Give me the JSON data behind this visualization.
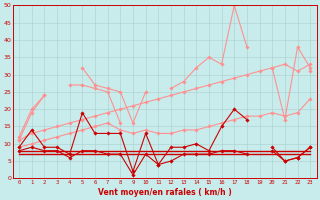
{
  "x": [
    0,
    1,
    2,
    3,
    4,
    5,
    6,
    7,
    8,
    9,
    10,
    11,
    12,
    13,
    14,
    15,
    16,
    17,
    18,
    19,
    20,
    21,
    22,
    23
  ],
  "series": [
    {
      "name": "rafales_peak",
      "color": "#ff9090",
      "linewidth": 0.8,
      "values": [
        12,
        20,
        24,
        null,
        null,
        32,
        27,
        26,
        25,
        16,
        25,
        null,
        26,
        28,
        32,
        35,
        33,
        50,
        38,
        null,
        32,
        17,
        38,
        32
      ],
      "marker": "D",
      "markersize": 1.8
    },
    {
      "name": "rafales_mid",
      "color": "#ff9090",
      "linewidth": 0.8,
      "values": [
        11,
        19,
        24,
        null,
        27,
        27,
        26,
        25,
        16,
        null,
        null,
        null,
        null,
        null,
        null,
        null,
        null,
        null,
        null,
        null,
        null,
        null,
        null,
        31
      ],
      "marker": "D",
      "markersize": 1.8
    },
    {
      "name": "trend_upper",
      "color": "#ff9090",
      "linewidth": 0.8,
      "values": [
        11,
        13,
        14,
        15,
        16,
        17,
        18,
        19,
        20,
        21,
        22,
        23,
        24,
        25,
        26,
        27,
        28,
        29,
        30,
        31,
        32,
        33,
        31,
        33
      ],
      "marker": "D",
      "markersize": 1.8
    },
    {
      "name": "trend_lower",
      "color": "#ff9090",
      "linewidth": 0.8,
      "values": [
        9,
        10,
        11,
        12,
        13,
        14,
        15,
        16,
        14,
        13,
        14,
        13,
        13,
        14,
        14,
        15,
        16,
        17,
        18,
        18,
        19,
        18,
        19,
        23
      ],
      "marker": "D",
      "markersize": 1.8
    },
    {
      "name": "moyen_high",
      "color": "#cc0000",
      "linewidth": 0.8,
      "values": [
        9,
        14,
        9,
        9,
        7,
        19,
        13,
        13,
        13,
        2,
        13,
        4,
        9,
        9,
        10,
        8,
        15,
        20,
        17,
        null,
        9,
        5,
        6,
        9
      ],
      "marker": "D",
      "markersize": 1.8
    },
    {
      "name": "moyen_mid",
      "color": "#cc0000",
      "linewidth": 0.8,
      "values": [
        8,
        9,
        8,
        8,
        6,
        8,
        8,
        7,
        7,
        1,
        7,
        4,
        5,
        7,
        7,
        7,
        8,
        8,
        7,
        null,
        8,
        5,
        6,
        9
      ],
      "marker": "D",
      "markersize": 1.8
    },
    {
      "name": "flat_7",
      "color": "#cc0000",
      "linewidth": 1.0,
      "values": [
        7,
        7,
        7,
        7,
        7,
        7,
        7,
        7,
        7,
        7,
        7,
        7,
        7,
        7,
        7,
        7,
        7,
        7,
        7,
        7,
        7,
        7,
        7,
        7
      ],
      "marker": null,
      "markersize": 0
    },
    {
      "name": "flat_8",
      "color": "#cc0000",
      "linewidth": 1.0,
      "values": [
        8,
        8,
        8,
        8,
        8,
        8,
        8,
        8,
        8,
        8,
        8,
        8,
        8,
        8,
        8,
        8,
        8,
        8,
        8,
        8,
        8,
        8,
        8,
        8
      ],
      "marker": null,
      "markersize": 0
    }
  ],
  "xlim": [
    -0.5,
    23.5
  ],
  "ylim": [
    0,
    50
  ],
  "yticks": [
    0,
    5,
    10,
    15,
    20,
    25,
    30,
    35,
    40,
    45,
    50
  ],
  "xticks": [
    0,
    1,
    2,
    3,
    4,
    5,
    6,
    7,
    8,
    9,
    10,
    11,
    12,
    13,
    14,
    15,
    16,
    17,
    18,
    19,
    20,
    21,
    22,
    23
  ],
  "xlabel": "Vent moyen/en rafales ( km/h )",
  "background_color": "#c8ecec",
  "grid_color": "#aacccc",
  "label_color": "#cc0000",
  "spine_color": "#cc0000"
}
